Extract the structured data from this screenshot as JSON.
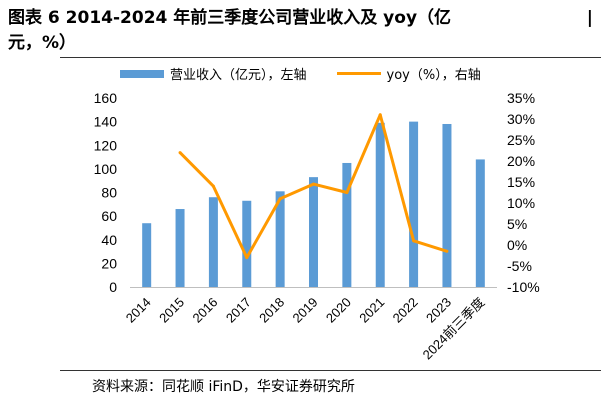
{
  "title": {
    "line1": "图表 6 2014-2024 年前三季度公司营业收入及 yoy（亿",
    "line2": "元，%）",
    "edge_mark": "|"
  },
  "source": "资料来源：同花顺 iFinD，华安证券研究所",
  "colors": {
    "bar": "#5b9bd5",
    "line": "#ff9900",
    "rule": "#333333"
  },
  "chart_data": {
    "type": "bar",
    "categories": [
      "2014",
      "2015",
      "2016",
      "2017",
      "2018",
      "2019",
      "2020",
      "2021",
      "2022",
      "2023",
      "2024前三季度"
    ],
    "series": [
      {
        "name": "营业收入（亿元），左轴",
        "type": "bar",
        "axis": "left",
        "values": [
          54,
          66,
          76,
          73,
          81,
          93,
          105,
          139,
          140,
          138,
          108
        ]
      },
      {
        "name": "yoy（%），右轴",
        "type": "line",
        "axis": "right",
        "values": [
          null,
          22,
          14,
          -3,
          11,
          14.5,
          12.5,
          31,
          1,
          -1.5,
          null
        ]
      }
    ],
    "left_axis": {
      "min": 0,
      "max": 160,
      "ticks": [
        "0",
        "20",
        "40",
        "60",
        "80",
        "100",
        "120",
        "140",
        "160"
      ]
    },
    "right_axis": {
      "min": -10,
      "max": 35,
      "ticks": [
        "-10%",
        "-5%",
        "0%",
        "5%",
        "10%",
        "15%",
        "20%",
        "25%",
        "30%",
        "35%"
      ]
    },
    "legend_position": "top"
  }
}
